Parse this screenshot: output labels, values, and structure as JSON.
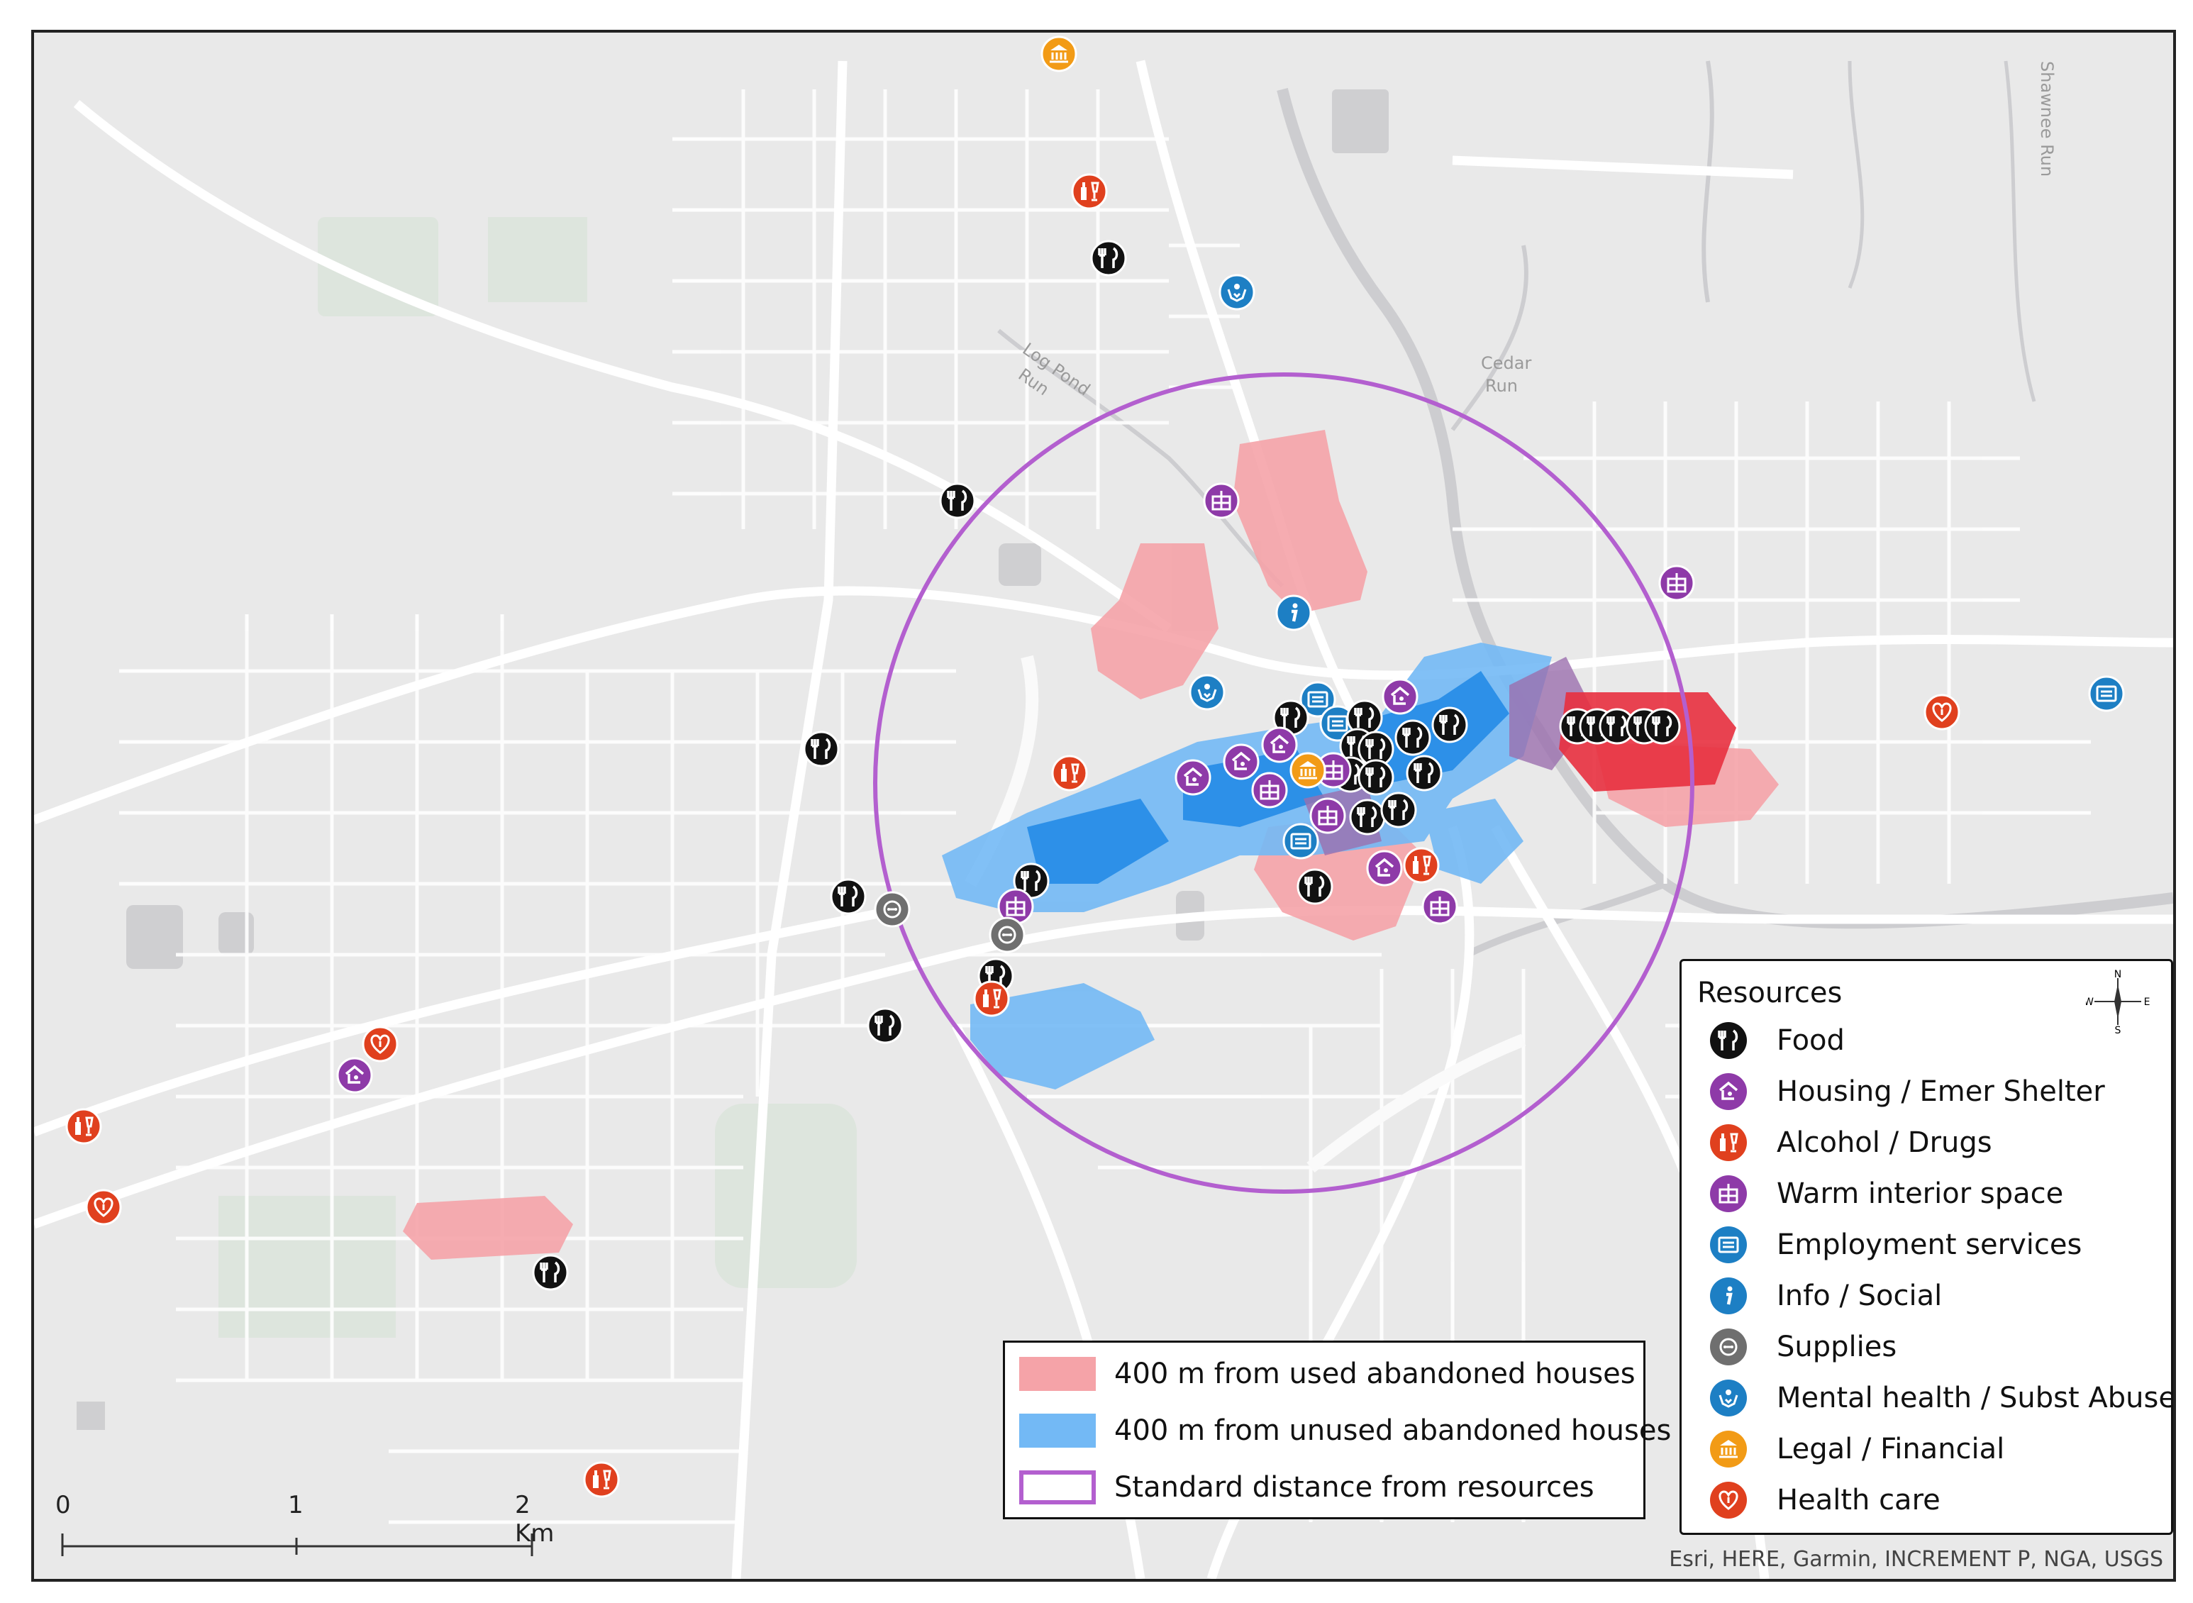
{
  "resources_legend": {
    "title": "Resources",
    "items": [
      {
        "label": "Food",
        "icon": "fork-knife-icon",
        "color": "#111111"
      },
      {
        "label": "Housing / Emer Shelter",
        "icon": "shelter-icon",
        "color": "#8e3aa8"
      },
      {
        "label": "Alcohol / Drugs",
        "icon": "bottle-icon",
        "color": "#e0401e"
      },
      {
        "label": "Warm interior space",
        "icon": "building-icon",
        "color": "#8e3aa8"
      },
      {
        "label": "Employment services",
        "icon": "id-card-icon",
        "color": "#1d7fc4"
      },
      {
        "label": "Info / Social",
        "icon": "info-icon",
        "color": "#1d7fc4"
      },
      {
        "label": "Supplies",
        "icon": "supplies-icon",
        "color": "#6f6f6f"
      },
      {
        "label": "Mental health / Subst Abuse",
        "icon": "helping-hands-icon",
        "color": "#1d7fc4"
      },
      {
        "label": "Legal / Financial",
        "icon": "bank-icon",
        "color": "#f29b16"
      },
      {
        "label": "Health care",
        "icon": "heart-icon",
        "color": "#e0401e"
      }
    ],
    "compass": {
      "n": "N",
      "s": "S",
      "e": "E",
      "w": "W"
    }
  },
  "areas_legend": {
    "items": [
      {
        "label": "400 m from used abandoned houses",
        "color": "#f5a3a8"
      },
      {
        "label": "400 m from unused abandoned houses",
        "color": "#73b9f5"
      },
      {
        "label": "Standard distance from resources",
        "color": "#b35fcf"
      }
    ]
  },
  "scale_bar": {
    "labels": [
      "0",
      "1",
      "2 Km"
    ]
  },
  "place_labels": {
    "log_pond_run_1": "Log Pond",
    "log_pond_run_2": "Run",
    "cedar_run_1": "Cedar",
    "cedar_run_2": "Run",
    "shawnee_run": "Shawnee Run"
  },
  "attribution": "Esri, HERE, Garmin, INCREMENT P, NGA, USGS",
  "colors": {
    "background": "#e9e9e9",
    "road": "#ffffff",
    "water": "#cfcfd1",
    "park": "#dde5dd",
    "used_buffer": "#f5a3a8",
    "used_buffer_dense": "#e8303f",
    "unused_buffer": "#73b9f5",
    "unused_buffer_dense": "#1e88e5",
    "overlap": "#9b6fae",
    "standard_distance": "#b35fcf"
  }
}
